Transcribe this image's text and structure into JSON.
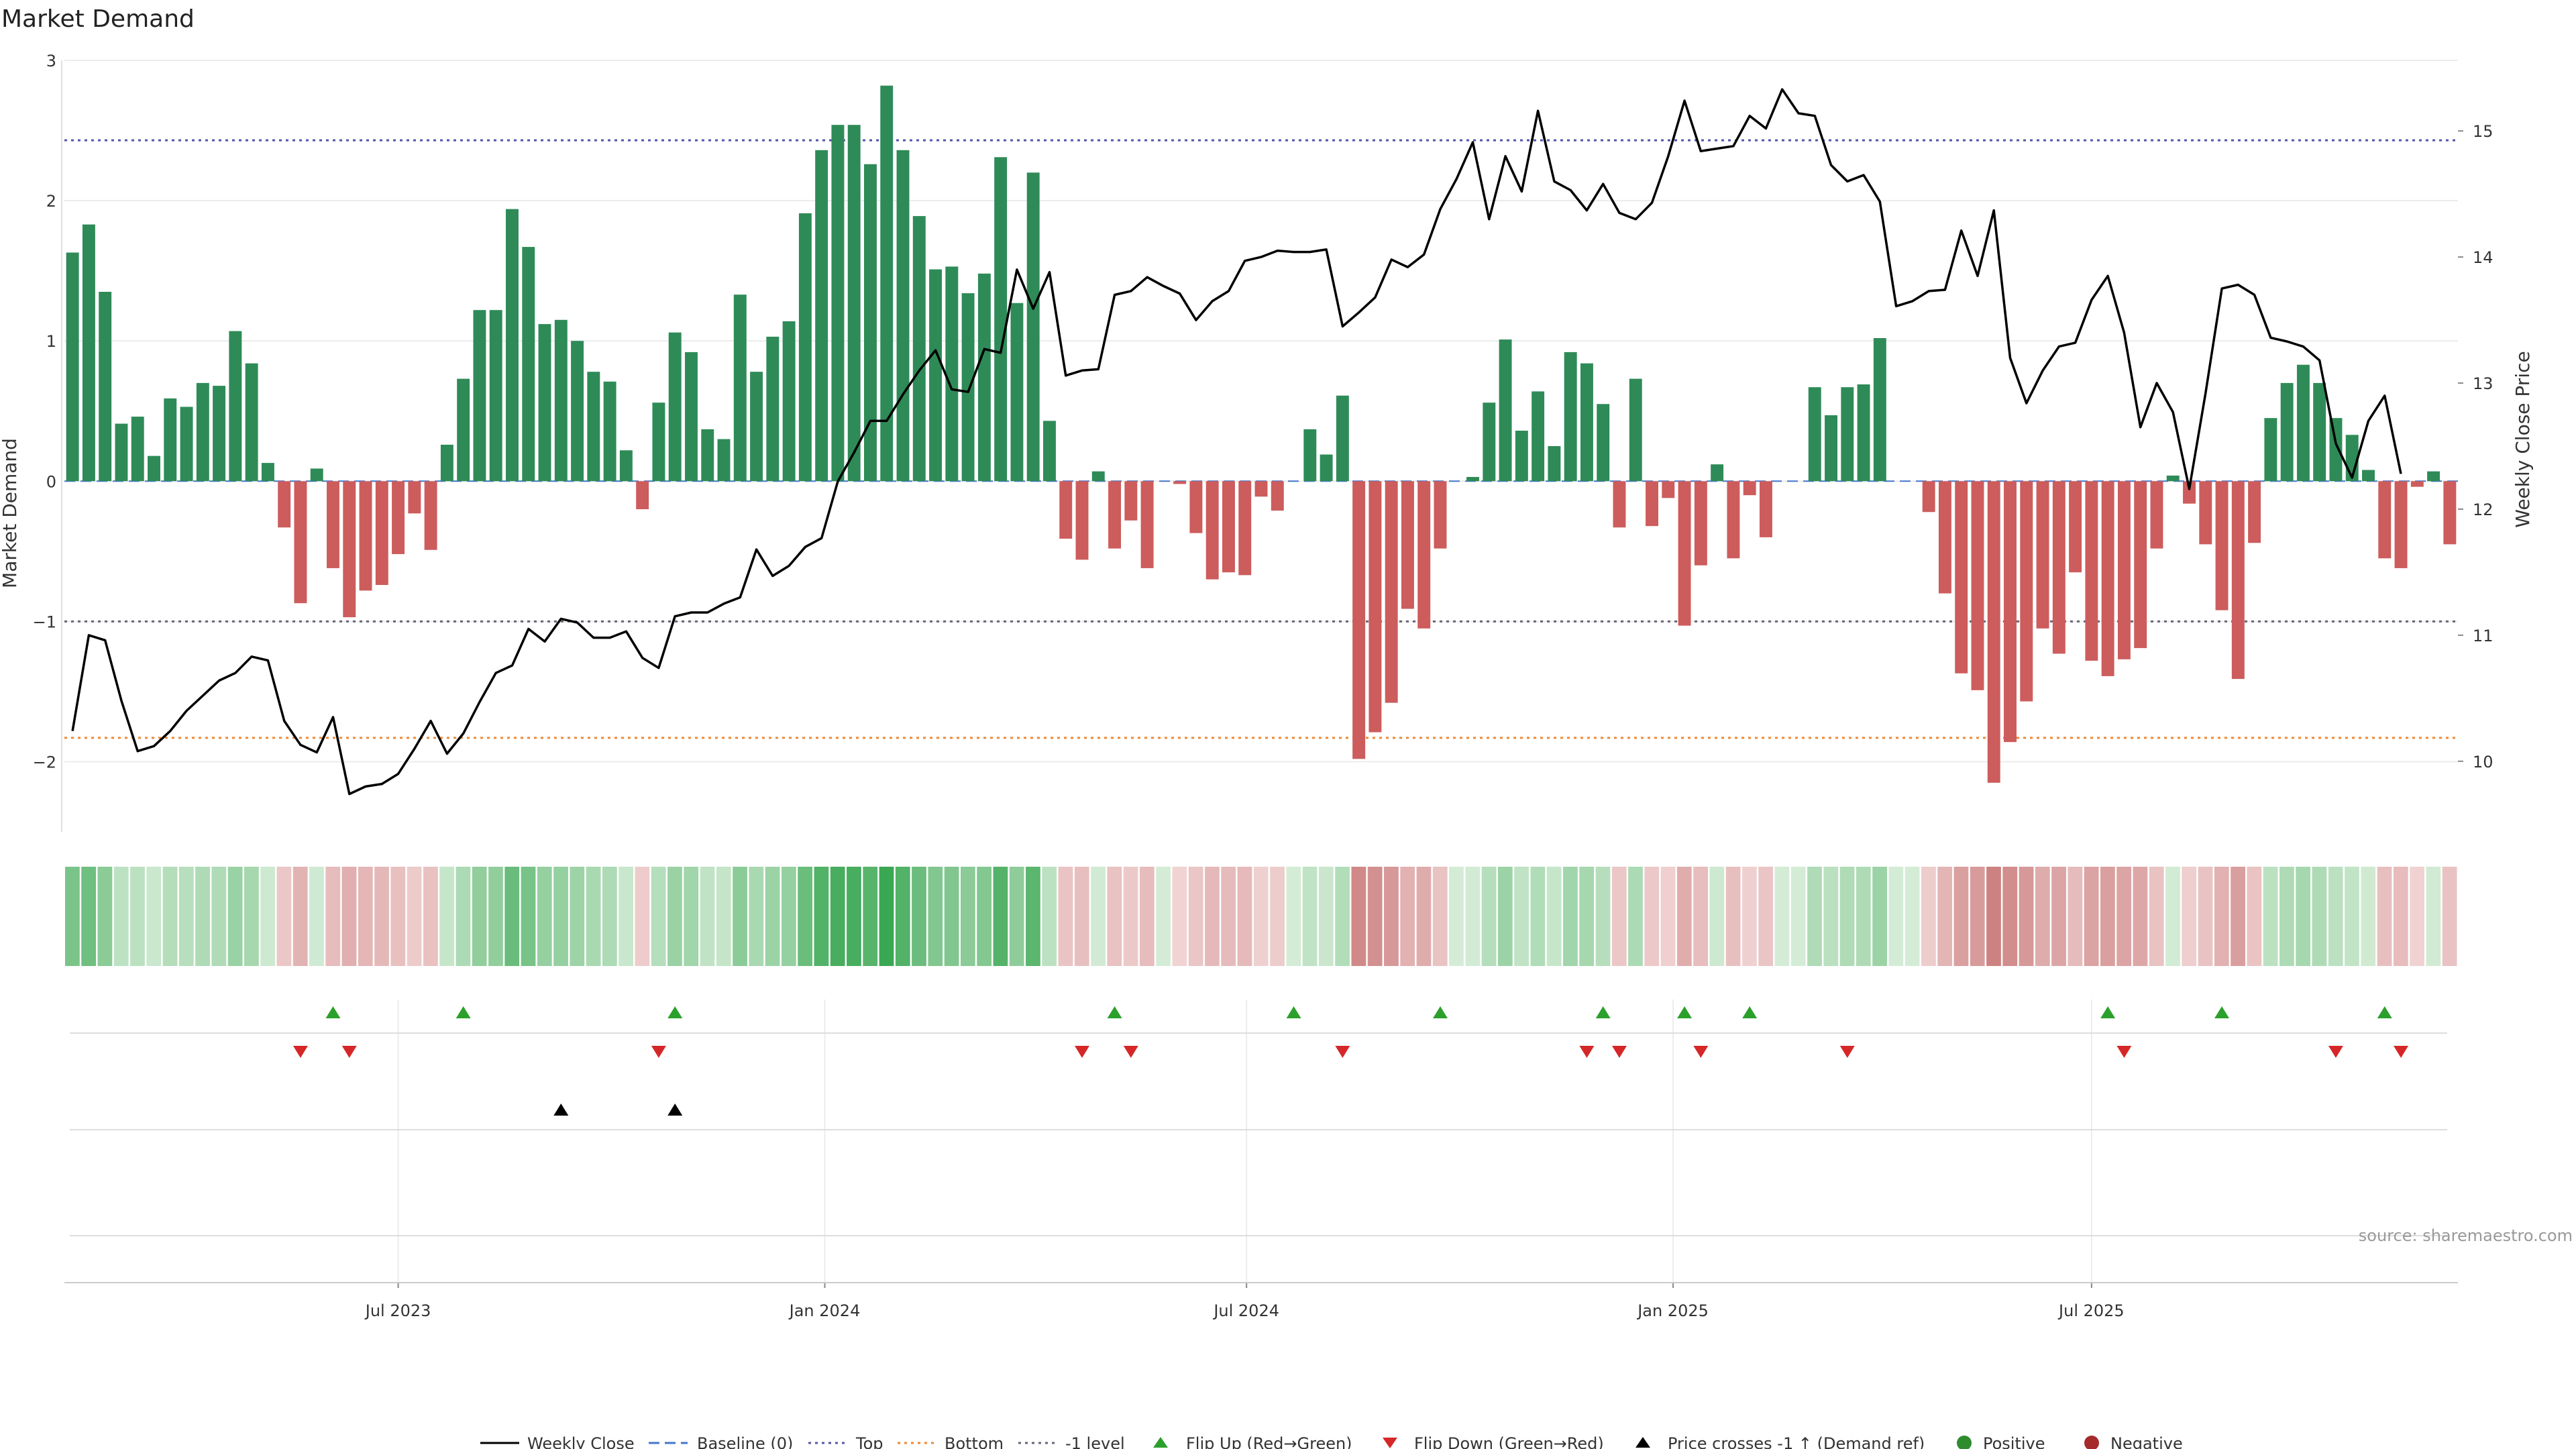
{
  "title": "Market Demand",
  "source": "source: sharemaestro.com",
  "colors": {
    "pos": "#2e8b57",
    "neg": "#cd5c5c",
    "price": "#000000",
    "top": "#5555aa",
    "bottom": "#ee8833",
    "minus1": "#666677",
    "flip_up": "#2ca02c",
    "flip_down": "#d62728",
    "cross": "#000000",
    "grid": "#ececec"
  },
  "legend": {
    "weekly_close": "Weekly Close",
    "baseline": "Baseline (0)",
    "top": "Top",
    "bottom": "Bottom",
    "minus1": "-1 level",
    "flip_up": "Flip Up (Red→Green)",
    "flip_down": "Flip Down (Green→Red)",
    "cross": "Price crosses -1 ↑ (Demand ref)",
    "positive": "Positive",
    "negative": "Negative"
  },
  "chart_data": {
    "type": "bar",
    "title": "Market Demand",
    "ylabel_left": "Market Demand",
    "ylabel_right": "Weekly Close Price",
    "y_left_range": [
      -2.5,
      3
    ],
    "y_left_ticks": [
      3,
      2,
      1,
      0,
      -1,
      -2
    ],
    "y_left_tick_labels": [
      "3",
      "2",
      "1",
      "0",
      "−1",
      "−2"
    ],
    "y_right_range": [
      9.44,
      15.56
    ],
    "y_right_ticks": [
      15,
      14,
      13,
      12,
      11,
      10
    ],
    "x_tick_labels": [
      "Jul 2023",
      "Jan 2024",
      "Jul 2024",
      "Jan 2025",
      "Jul 2025"
    ],
    "x_tick_index": [
      20.5,
      46.7,
      72.6,
      98.8,
      124.5
    ],
    "reference_lines": {
      "top": 2.43,
      "bottom": -1.83,
      "minus_one": -1.0,
      "baseline": 0
    },
    "series": [
      {
        "name": "Market Demand",
        "values": [
          1.63,
          1.83,
          1.35,
          0.41,
          0.46,
          0.18,
          0.59,
          0.53,
          0.7,
          0.68,
          1.07,
          0.84,
          0.13,
          -0.33,
          -0.87,
          0.09,
          -0.62,
          -0.97,
          -0.78,
          -0.74,
          -0.52,
          -0.23,
          -0.49,
          0.26,
          0.73,
          1.22,
          1.22,
          1.94,
          1.67,
          1.12,
          1.15,
          1.0,
          0.78,
          0.71,
          0.22,
          -0.2,
          0.56,
          1.06,
          0.92,
          0.37,
          0.3,
          1.33,
          0.78,
          1.03,
          1.14,
          1.91,
          2.36,
          2.54,
          2.54,
          2.26,
          2.82,
          2.36,
          1.89,
          1.51,
          1.53,
          1.34,
          1.48,
          2.31,
          1.27,
          2.2,
          0.43,
          -0.41,
          -0.56,
          0.07,
          -0.48,
          -0.28,
          -0.62,
          0.0,
          -0.02,
          -0.37,
          -0.7,
          -0.65,
          -0.67,
          -0.11,
          -0.21,
          0.0,
          0.37,
          0.19,
          0.61,
          -1.98,
          -1.79,
          -1.58,
          -0.91,
          -1.05,
          -0.48,
          0.0,
          0.03,
          0.56,
          1.01,
          0.36,
          0.64,
          0.25,
          0.92,
          0.84,
          0.55,
          -0.33,
          0.73,
          -0.32,
          -0.12,
          -1.03,
          -0.6,
          0.12,
          -0.55,
          -0.1,
          -0.4,
          0.0,
          0.0,
          0.67,
          0.47,
          0.67,
          0.69,
          1.02,
          0.0,
          0.0,
          -0.22,
          -0.8,
          -1.37,
          -1.49,
          -2.15,
          -1.86,
          -1.57,
          -1.05,
          -1.23,
          -0.65,
          -1.28,
          -1.39,
          -1.27,
          -1.19,
          -0.48,
          0.04,
          -0.16,
          -0.45,
          -0.92,
          -1.41,
          -0.44,
          0.45,
          0.7,
          0.83,
          0.7,
          0.45,
          0.33,
          0.08,
          -0.55,
          -0.62,
          -0.04,
          0.07,
          -0.45
        ]
      },
      {
        "name": "Weekly Close",
        "values": [
          10.24,
          11.0,
          10.96,
          10.48,
          10.08,
          10.12,
          10.24,
          10.4,
          10.52,
          10.64,
          10.7,
          10.83,
          10.8,
          10.32,
          10.13,
          10.07,
          10.35,
          9.74,
          9.8,
          9.82,
          9.9,
          10.1,
          10.32,
          10.06,
          10.22,
          10.47,
          10.7,
          10.76,
          11.05,
          10.95,
          11.13,
          11.1,
          10.98,
          10.98,
          11.03,
          10.82,
          10.74,
          11.15,
          11.18,
          11.18,
          11.25,
          11.3,
          11.68,
          11.47,
          11.55,
          11.7,
          11.77,
          12.22,
          12.45,
          12.7,
          12.7,
          12.91,
          13.1,
          13.26,
          12.95,
          12.93,
          13.27,
          13.24,
          13.9,
          13.59,
          13.88,
          13.06,
          13.1,
          13.11,
          13.7,
          13.73,
          13.84,
          13.77,
          13.71,
          13.5,
          13.65,
          13.73,
          13.97,
          14.0,
          14.05,
          14.04,
          14.04,
          14.06,
          13.45,
          13.56,
          13.68,
          13.98,
          13.92,
          14.02,
          14.38,
          14.62,
          14.91,
          14.3,
          14.8,
          14.52,
          15.16,
          14.6,
          14.53,
          14.37,
          14.58,
          14.35,
          14.3,
          14.43,
          14.8,
          15.24,
          14.84,
          14.86,
          14.88,
          15.12,
          15.02,
          15.33,
          15.14,
          15.12,
          14.73,
          14.6,
          14.65,
          14.44,
          13.61,
          13.65,
          13.73,
          13.74,
          14.21,
          13.85,
          14.37,
          13.2,
          12.84,
          13.1,
          13.29,
          13.32,
          13.66,
          13.85,
          13.4,
          12.65,
          13.0,
          12.77,
          12.16,
          12.92,
          13.75,
          13.78,
          13.7,
          13.36,
          13.33,
          13.29,
          13.18,
          12.52,
          12.25,
          12.7,
          12.9,
          12.28
        ]
      }
    ],
    "flip_up_index": [
      16,
      24,
      37,
      64,
      75,
      84,
      94,
      99,
      103,
      125,
      132,
      142
    ],
    "flip_down_index": [
      14,
      17,
      36,
      62,
      65,
      78,
      93,
      95,
      100,
      109,
      126,
      139,
      143
    ],
    "price_cross_index": [
      30,
      37
    ]
  }
}
